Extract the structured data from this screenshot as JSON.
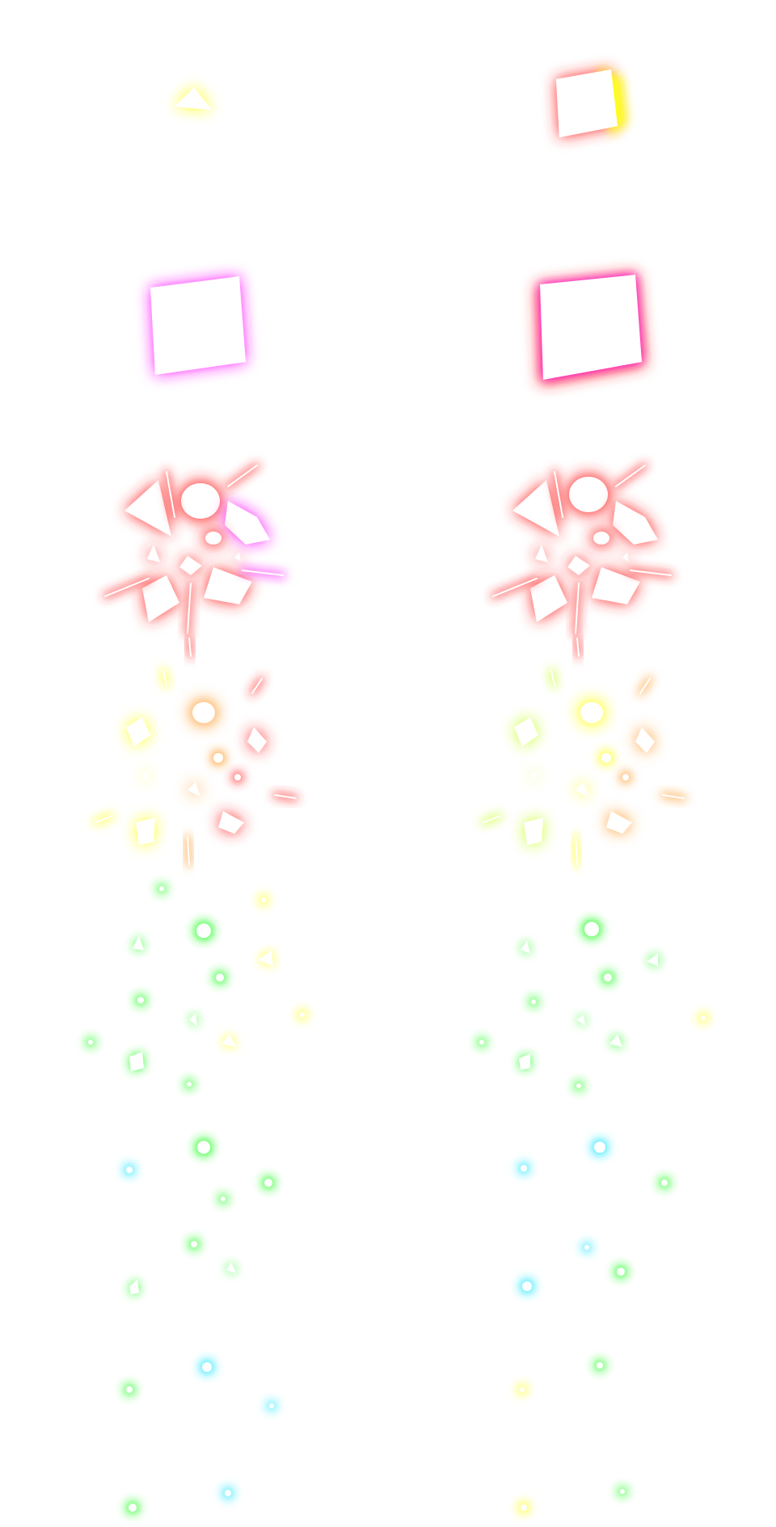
{
  "sheet": {
    "background": "#ffffff",
    "fill": "#ffffff"
  },
  "palette": {
    "red": "#ff2a2a",
    "magenta": "#ff1aff",
    "yellow": "#ffff1a",
    "orange": "#ff9a2a",
    "green": "#22ff22",
    "lime": "#c8ff22",
    "cyan": "#22e6ff",
    "pink": "#ff4fa0"
  }
}
